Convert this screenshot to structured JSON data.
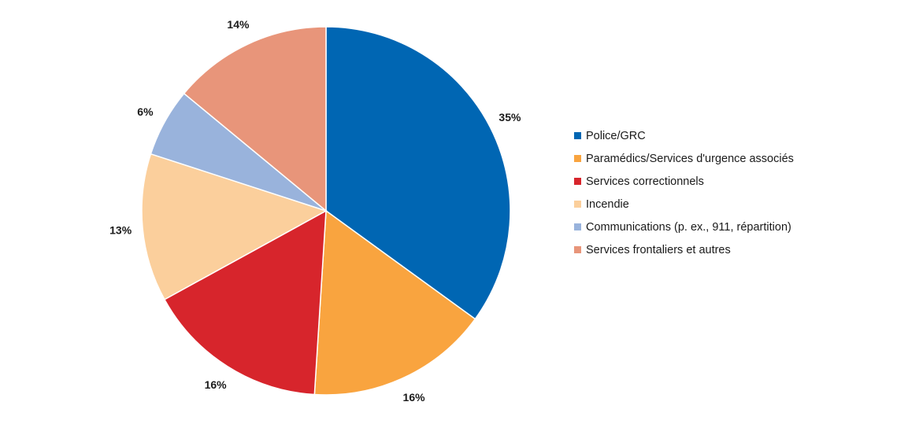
{
  "chart_data": {
    "type": "pie",
    "title": "",
    "start_angle_deg": 0,
    "direction": "clockwise",
    "legend_position": "right",
    "slices": [
      {
        "label": "Police/GRC",
        "value": 35,
        "display": "35%",
        "color": "#0066B3"
      },
      {
        "label": "Paramédics/Services d'urgence associés",
        "value": 16,
        "display": "16%",
        "color": "#F9A43F"
      },
      {
        "label": "Services correctionnels",
        "value": 16,
        "display": "16%",
        "color": "#D7252C"
      },
      {
        "label": "Incendie",
        "value": 13,
        "display": "13%",
        "color": "#FBCF9C"
      },
      {
        "label": "Communications (p. ex., 911, répartition)",
        "value": 6,
        "display": "6%",
        "color": "#99B3DC"
      },
      {
        "label": "Services frontaliers et autres",
        "value": 14,
        "display": "14%",
        "color": "#E8957A"
      }
    ]
  }
}
